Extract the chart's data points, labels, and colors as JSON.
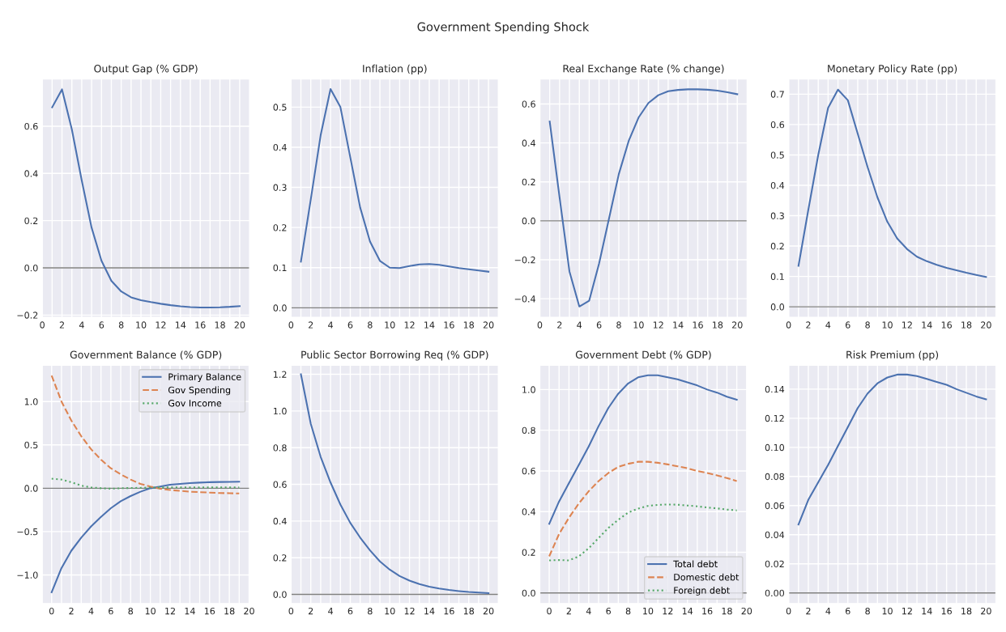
{
  "chart_data": [
    {
      "type": "line",
      "title": "Output Gap (% GDP)",
      "annotations": [
        "Government Spending Shock"
      ],
      "x": [
        1,
        2,
        3,
        4,
        5,
        6,
        7,
        8,
        9,
        10,
        11,
        12,
        13,
        14,
        15,
        16,
        17,
        18,
        19,
        20
      ],
      "xlim": [
        0,
        21
      ],
      "xticks": [
        0,
        {
          "value": 1,
          "label": null
        },
        2,
        {
          "value": 3,
          "label": null
        },
        4,
        {
          "value": 5,
          "label": null
        },
        6,
        {
          "value": 7,
          "label": null
        },
        8,
        {
          "value": 9,
          "label": null
        },
        10,
        {
          "value": 11,
          "label": null
        },
        12,
        {
          "value": 13,
          "label": null
        },
        14,
        {
          "value": 15,
          "label": null
        },
        16,
        {
          "value": 17,
          "label": null
        },
        18,
        {
          "value": 19,
          "label": null
        },
        20
      ],
      "ylim": [
        -0.21,
        0.8
      ],
      "yticks": [
        {
          "value": -0.2,
          "label": "−0.2"
        },
        {
          "value": 0,
          "label": "0.0"
        },
        {
          "value": 0.2,
          "label": "0.2"
        },
        {
          "value": 0.4,
          "label": "0.4"
        },
        {
          "value": 0.6,
          "label": "0.6"
        }
      ],
      "grid": true,
      "legend": false,
      "line_style": "solid",
      "ref_lines": [
        {
          "axis": "y",
          "value": 0,
          "color": "#7f7f7f"
        }
      ],
      "series": [
        {
          "color": "#4c72b0",
          "values": [
            0.68,
            0.756,
            0.586,
            0.37,
            0.17,
            0.03,
            -0.055,
            -0.1,
            -0.125,
            -0.137,
            -0.145,
            -0.152,
            -0.158,
            -0.163,
            -0.166,
            -0.168,
            -0.168,
            -0.167,
            -0.165,
            -0.162
          ]
        }
      ]
    },
    {
      "type": "line",
      "title": "Inflation (pp)",
      "x": [
        1,
        2,
        3,
        4,
        5,
        6,
        7,
        8,
        9,
        10,
        11,
        12,
        13,
        14,
        15,
        16,
        17,
        18,
        19,
        20
      ],
      "xlim": [
        0,
        21
      ],
      "xticks": [
        0,
        {
          "value": 1,
          "label": null
        },
        2,
        {
          "value": 3,
          "label": null
        },
        4,
        {
          "value": 5,
          "label": null
        },
        6,
        {
          "value": 7,
          "label": null
        },
        8,
        {
          "value": 9,
          "label": null
        },
        10,
        {
          "value": 11,
          "label": null
        },
        12,
        {
          "value": 13,
          "label": null
        },
        14,
        {
          "value": 15,
          "label": null
        },
        16,
        {
          "value": 17,
          "label": null
        },
        18,
        {
          "value": 19,
          "label": null
        },
        20
      ],
      "ylim": [
        -0.024,
        0.57
      ],
      "yticks": [
        {
          "value": 0,
          "label": "0.0"
        },
        {
          "value": 0.1,
          "label": "0.1"
        },
        {
          "value": 0.2,
          "label": "0.2"
        },
        {
          "value": 0.3,
          "label": "0.3"
        },
        {
          "value": 0.4,
          "label": "0.4"
        },
        {
          "value": 0.5,
          "label": "0.5"
        }
      ],
      "grid": true,
      "legend": false,
      "line_style": "solid",
      "ref_lines": [
        {
          "axis": "y",
          "value": 0,
          "color": "#7f7f7f"
        }
      ],
      "series": [
        {
          "color": "#4c72b0",
          "values": [
            0.115,
            0.27,
            0.43,
            0.545,
            0.5,
            0.375,
            0.25,
            0.165,
            0.117,
            0.1,
            0.099,
            0.104,
            0.108,
            0.109,
            0.107,
            0.103,
            0.099,
            0.096,
            0.093,
            0.09
          ]
        }
      ]
    },
    {
      "type": "line",
      "title": "Real Exchange Rate (% change)",
      "x": [
        1,
        2,
        3,
        4,
        5,
        6,
        7,
        8,
        9,
        10,
        11,
        12,
        13,
        14,
        15,
        16,
        17,
        18,
        19,
        20
      ],
      "xlim": [
        0,
        21
      ],
      "xticks": [
        0,
        {
          "value": 1,
          "label": null
        },
        2,
        {
          "value": 3,
          "label": null
        },
        4,
        {
          "value": 5,
          "label": null
        },
        6,
        {
          "value": 7,
          "label": null
        },
        8,
        {
          "value": 9,
          "label": null
        },
        10,
        {
          "value": 11,
          "label": null
        },
        12,
        {
          "value": 13,
          "label": null
        },
        14,
        {
          "value": 15,
          "label": null
        },
        16,
        {
          "value": 17,
          "label": null
        },
        18,
        {
          "value": 19,
          "label": null
        },
        20
      ],
      "ylim": [
        -0.496,
        0.728
      ],
      "yticks": [
        {
          "value": -0.4,
          "label": "−0.4"
        },
        {
          "value": -0.2,
          "label": "−0.2"
        },
        {
          "value": 0,
          "label": "0.0"
        },
        {
          "value": 0.2,
          "label": "0.2"
        },
        {
          "value": 0.4,
          "label": "0.4"
        },
        {
          "value": 0.6,
          "label": "0.6"
        }
      ],
      "grid": true,
      "legend": false,
      "line_style": "solid",
      "ref_lines": [
        {
          "axis": "y",
          "value": 0,
          "color": "#7f7f7f"
        }
      ],
      "series": [
        {
          "color": "#4c72b0",
          "values": [
            0.51,
            0.12,
            -0.26,
            -0.44,
            -0.41,
            -0.22,
            0.01,
            0.24,
            0.41,
            0.53,
            0.605,
            0.645,
            0.665,
            0.672,
            0.675,
            0.675,
            0.673,
            0.668,
            0.66,
            0.65
          ]
        }
      ]
    },
    {
      "type": "line",
      "title": "Monetary Policy Rate (pp)",
      "x": [
        1,
        2,
        3,
        4,
        5,
        6,
        7,
        8,
        9,
        10,
        11,
        12,
        13,
        14,
        15,
        16,
        17,
        18,
        19,
        20
      ],
      "xlim": [
        0,
        21
      ],
      "xticks": [
        0,
        {
          "value": 1,
          "label": null
        },
        2,
        {
          "value": 3,
          "label": null
        },
        4,
        {
          "value": 5,
          "label": null
        },
        6,
        {
          "value": 7,
          "label": null
        },
        8,
        {
          "value": 9,
          "label": null
        },
        10,
        {
          "value": 11,
          "label": null
        },
        12,
        {
          "value": 13,
          "label": null
        },
        14,
        {
          "value": 15,
          "label": null
        },
        16,
        {
          "value": 17,
          "label": null
        },
        18,
        {
          "value": 19,
          "label": null
        },
        20
      ],
      "ylim": [
        -0.035,
        0.75
      ],
      "yticks": [
        {
          "value": 0,
          "label": "0.0"
        },
        {
          "value": 0.1,
          "label": "0.1"
        },
        {
          "value": 0.2,
          "label": "0.2"
        },
        {
          "value": 0.3,
          "label": "0.3"
        },
        {
          "value": 0.4,
          "label": "0.4"
        },
        {
          "value": 0.5,
          "label": "0.5"
        },
        {
          "value": 0.6,
          "label": "0.6"
        },
        {
          "value": 0.7,
          "label": "0.7"
        }
      ],
      "grid": true,
      "legend": false,
      "line_style": "solid",
      "ref_lines": [
        {
          "axis": "y",
          "value": 0,
          "color": "#7f7f7f"
        }
      ],
      "series": [
        {
          "color": "#4c72b0",
          "values": [
            0.135,
            0.32,
            0.5,
            0.655,
            0.715,
            0.68,
            0.57,
            0.46,
            0.36,
            0.28,
            0.225,
            0.19,
            0.165,
            0.15,
            0.138,
            0.128,
            0.12,
            0.112,
            0.105,
            0.098
          ]
        }
      ]
    },
    {
      "type": "line",
      "title": "Government Balance (% GDP)",
      "x": [
        0,
        1,
        2,
        3,
        4,
        5,
        6,
        7,
        8,
        9,
        10,
        11,
        12,
        13,
        14,
        15,
        16,
        17,
        18,
        19
      ],
      "xlim": [
        -0.95,
        20.05
      ],
      "xticks": [
        0,
        {
          "value": 1,
          "label": null
        },
        2,
        {
          "value": 3,
          "label": null
        },
        4,
        {
          "value": 5,
          "label": null
        },
        6,
        {
          "value": 7,
          "label": null
        },
        8,
        {
          "value": 9,
          "label": null
        },
        10,
        {
          "value": 11,
          "label": null
        },
        12,
        {
          "value": 13,
          "label": null
        },
        14,
        {
          "value": 15,
          "label": null
        },
        16,
        {
          "value": 17,
          "label": null
        },
        18,
        {
          "value": 19,
          "label": null
        },
        20
      ],
      "ylim": [
        -1.33,
        1.42
      ],
      "yticks": [
        {
          "value": -1,
          "label": "−1.0"
        },
        {
          "value": -0.5,
          "label": "−0.5"
        },
        {
          "value": 0,
          "label": "0.0"
        },
        {
          "value": 0.5,
          "label": "0.5"
        },
        {
          "value": 1,
          "label": "1.0"
        }
      ],
      "grid": true,
      "legend": "top right",
      "ref_lines": [
        {
          "axis": "y",
          "value": 0,
          "color": "#7f7f7f"
        }
      ],
      "series": [
        {
          "name": "Primary Balance",
          "color": "#4c72b0",
          "line_style": "solid",
          "values": [
            -1.2,
            -0.92,
            -0.72,
            -0.57,
            -0.44,
            -0.33,
            -0.23,
            -0.15,
            -0.09,
            -0.04,
            0.0,
            0.02,
            0.04,
            0.05,
            0.06,
            0.065,
            0.07,
            0.072,
            0.074,
            0.075
          ]
        },
        {
          "name": "Gov Spending",
          "color": "#dd8452",
          "line_style": "dashed",
          "values": [
            1.3,
            1.0,
            0.78,
            0.6,
            0.45,
            0.33,
            0.23,
            0.16,
            0.1,
            0.05,
            0.02,
            -0.005,
            -0.02,
            -0.03,
            -0.04,
            -0.045,
            -0.05,
            -0.055,
            -0.057,
            -0.06
          ]
        },
        {
          "name": "Gov Income",
          "color": "#55a868",
          "line_style": "dotted",
          "values": [
            0.11,
            0.1,
            0.07,
            0.03,
            0.01,
            0.0,
            -0.005,
            0.0,
            0.003,
            0.005,
            0.008,
            0.009,
            0.01,
            0.01,
            0.01,
            0.01,
            0.01,
            0.01,
            0.01,
            0.01
          ]
        }
      ]
    },
    {
      "type": "line",
      "title": "Public Sector Borrowing Req (% GDP)",
      "x": [
        1,
        2,
        3,
        4,
        5,
        6,
        7,
        8,
        9,
        10,
        11,
        12,
        13,
        14,
        15,
        16,
        17,
        18,
        19,
        20
      ],
      "xlim": [
        0,
        21
      ],
      "xticks": [
        0,
        {
          "value": 1,
          "label": null
        },
        2,
        {
          "value": 3,
          "label": null
        },
        4,
        {
          "value": 5,
          "label": null
        },
        6,
        {
          "value": 7,
          "label": null
        },
        8,
        {
          "value": 9,
          "label": null
        },
        10,
        {
          "value": 11,
          "label": null
        },
        12,
        {
          "value": 13,
          "label": null
        },
        14,
        {
          "value": 15,
          "label": null
        },
        16,
        {
          "value": 17,
          "label": null
        },
        18,
        {
          "value": 19,
          "label": null
        },
        20
      ],
      "ylim": [
        -0.05,
        1.25
      ],
      "yticks": [
        {
          "value": 0,
          "label": "0.0"
        },
        {
          "value": 0.2,
          "label": "0.2"
        },
        {
          "value": 0.4,
          "label": "0.4"
        },
        {
          "value": 0.6,
          "label": "0.6"
        },
        {
          "value": 0.8,
          "label": "0.8"
        },
        {
          "value": 1.0,
          "label": "1.0"
        },
        {
          "value": 1.2,
          "label": "1.2"
        }
      ],
      "grid": true,
      "legend": false,
      "line_style": "solid",
      "ref_lines": [
        {
          "axis": "y",
          "value": 0,
          "color": "#7f7f7f"
        }
      ],
      "series": [
        {
          "color": "#4c72b0",
          "values": [
            1.2,
            0.93,
            0.75,
            0.61,
            0.49,
            0.39,
            0.31,
            0.24,
            0.18,
            0.135,
            0.1,
            0.075,
            0.056,
            0.042,
            0.032,
            0.024,
            0.018,
            0.013,
            0.01,
            0.007
          ]
        }
      ]
    },
    {
      "type": "line",
      "title": "Government Debt (% GDP)",
      "x": [
        0,
        1,
        2,
        3,
        4,
        5,
        6,
        7,
        8,
        9,
        10,
        11,
        12,
        13,
        14,
        15,
        16,
        17,
        18,
        19
      ],
      "xlim": [
        -0.95,
        20.05
      ],
      "xticks": [
        0,
        {
          "value": 1,
          "label": null
        },
        2,
        {
          "value": 3,
          "label": null
        },
        4,
        {
          "value": 5,
          "label": null
        },
        6,
        {
          "value": 7,
          "label": null
        },
        8,
        {
          "value": 9,
          "label": null
        },
        10,
        {
          "value": 11,
          "label": null
        },
        12,
        {
          "value": 13,
          "label": null
        },
        14,
        {
          "value": 15,
          "label": null
        },
        16,
        {
          "value": 17,
          "label": null
        },
        18,
        {
          "value": 19,
          "label": null
        },
        20
      ],
      "ylim": [
        -0.052,
        1.12
      ],
      "yticks": [
        {
          "value": 0,
          "label": "0.0"
        },
        {
          "value": 0.2,
          "label": "0.2"
        },
        {
          "value": 0.4,
          "label": "0.4"
        },
        {
          "value": 0.6,
          "label": "0.6"
        },
        {
          "value": 0.8,
          "label": "0.8"
        },
        {
          "value": 1.0,
          "label": "1.0"
        }
      ],
      "grid": true,
      "legend": "bottom right",
      "ref_lines": [
        {
          "axis": "y",
          "value": 0,
          "color": "#7f7f7f"
        }
      ],
      "series": [
        {
          "name": "Total debt",
          "color": "#4c72b0",
          "line_style": "solid",
          "values": [
            0.34,
            0.45,
            0.54,
            0.63,
            0.72,
            0.82,
            0.91,
            0.98,
            1.03,
            1.06,
            1.07,
            1.07,
            1.06,
            1.05,
            1.035,
            1.02,
            1.0,
            0.985,
            0.965,
            0.95
          ]
        },
        {
          "name": "Domestic debt",
          "color": "#dd8452",
          "line_style": "dashed",
          "values": [
            0.18,
            0.29,
            0.37,
            0.44,
            0.5,
            0.55,
            0.59,
            0.62,
            0.635,
            0.645,
            0.645,
            0.64,
            0.632,
            0.623,
            0.613,
            0.6,
            0.59,
            0.578,
            0.565,
            0.55
          ]
        },
        {
          "name": "Foreign debt",
          "color": "#55a868",
          "line_style": "dotted",
          "values": [
            0.16,
            0.162,
            0.16,
            0.18,
            0.22,
            0.27,
            0.32,
            0.36,
            0.395,
            0.415,
            0.428,
            0.433,
            0.435,
            0.434,
            0.43,
            0.426,
            0.42,
            0.416,
            0.41,
            0.406
          ]
        }
      ]
    },
    {
      "type": "line",
      "title": "Risk Premium (pp)",
      "x": [
        1,
        2,
        3,
        4,
        5,
        6,
        7,
        8,
        9,
        10,
        11,
        12,
        13,
        14,
        15,
        16,
        17,
        18,
        19,
        20
      ],
      "xlim": [
        0,
        21
      ],
      "xticks": [
        0,
        {
          "value": 1,
          "label": null
        },
        2,
        {
          "value": 3,
          "label": null
        },
        4,
        {
          "value": 5,
          "label": null
        },
        6,
        {
          "value": 7,
          "label": null
        },
        8,
        {
          "value": 9,
          "label": null
        },
        10,
        {
          "value": 11,
          "label": null
        },
        12,
        {
          "value": 13,
          "label": null
        },
        14,
        {
          "value": 15,
          "label": null
        },
        16,
        {
          "value": 17,
          "label": null
        },
        18,
        {
          "value": 19,
          "label": null
        },
        20
      ],
      "ylim": [
        -0.0073,
        0.1565
      ],
      "yticks": [
        {
          "value": 0,
          "label": "0.00"
        },
        {
          "value": 0.02,
          "label": "0.02"
        },
        {
          "value": 0.04,
          "label": "0.04"
        },
        {
          "value": 0.06,
          "label": "0.06"
        },
        {
          "value": 0.08,
          "label": "0.08"
        },
        {
          "value": 0.1,
          "label": "0.10"
        },
        {
          "value": 0.12,
          "label": "0.12"
        },
        {
          "value": 0.14,
          "label": "0.14"
        }
      ],
      "grid": true,
      "legend": false,
      "line_style": "solid",
      "ref_lines": [
        {
          "axis": "y",
          "value": 0,
          "color": "#7f7f7f"
        }
      ],
      "series": [
        {
          "color": "#4c72b0",
          "values": [
            0.047,
            0.064,
            0.076,
            0.088,
            0.101,
            0.114,
            0.127,
            0.137,
            0.144,
            0.148,
            0.15,
            0.15,
            0.149,
            0.147,
            0.145,
            0.143,
            0.14,
            0.1375,
            0.135,
            0.133
          ]
        }
      ]
    }
  ]
}
